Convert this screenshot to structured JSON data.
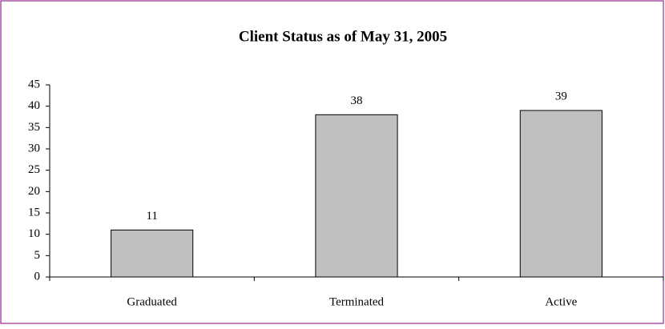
{
  "chart_data": {
    "type": "bar",
    "title": "Client Status as of May 31, 2005",
    "categories": [
      "Graduated",
      "Terminated",
      "Active"
    ],
    "values": [
      11,
      38,
      39
    ],
    "color": "#c0c0c0",
    "ylim": [
      0,
      45
    ],
    "yticks": [
      0,
      5,
      10,
      15,
      20,
      25,
      30,
      35,
      40,
      45
    ],
    "grid": false
  }
}
